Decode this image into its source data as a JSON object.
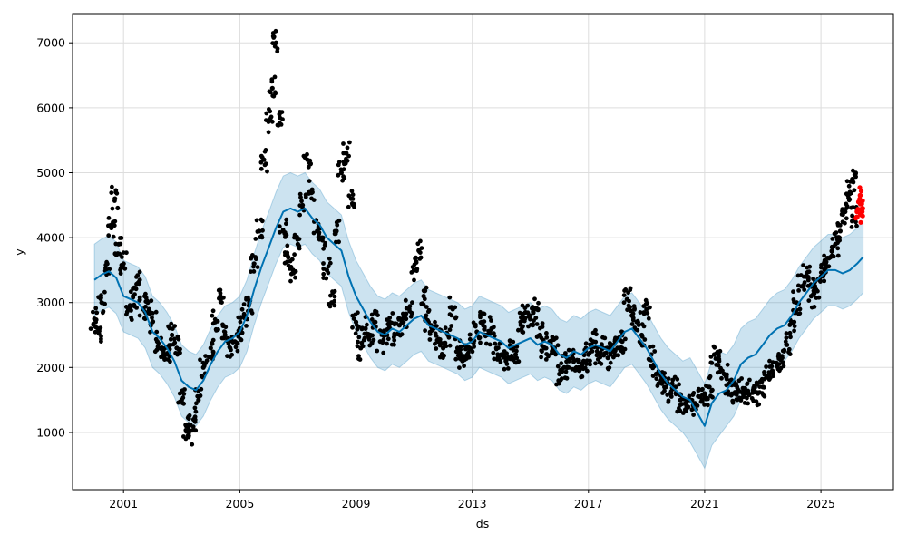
{
  "chart_data": {
    "type": "scatter",
    "xlabel": "ds",
    "ylabel": "y",
    "x_range": [
      "1999-04-01",
      "2027-07-01"
    ],
    "y_range": [
      120,
      7450
    ],
    "x_ticks": [
      {
        "date": "2001-01-01",
        "label": "2001"
      },
      {
        "date": "2005-01-01",
        "label": "2005"
      },
      {
        "date": "2009-01-01",
        "label": "2009"
      },
      {
        "date": "2013-01-01",
        "label": "2013"
      },
      {
        "date": "2017-01-01",
        "label": "2017"
      },
      {
        "date": "2021-01-01",
        "label": "2021"
      },
      {
        "date": "2025-01-01",
        "label": "2025"
      }
    ],
    "y_ticks": [
      1000,
      2000,
      3000,
      4000,
      5000,
      6000,
      7000
    ],
    "grid": true,
    "colors": {
      "observed": "#000000",
      "forecast_line": "#0072b2",
      "uncertainty_band": "#0072b2",
      "recent_actual": "#ff0000"
    },
    "series": [
      {
        "kind": "observed_points",
        "points": [
          [
            "2000-01-01",
            2750
          ],
          [
            "2000-02-15",
            2550
          ],
          [
            "2000-04-01",
            3000
          ],
          [
            "2000-06-01",
            3500
          ],
          [
            "2000-08-01",
            4150
          ],
          [
            "2000-09-15",
            4600
          ],
          [
            "2000-11-01",
            3900
          ],
          [
            "2001-01-01",
            3600
          ],
          [
            "2001-03-01",
            2900
          ],
          [
            "2001-05-01",
            3100
          ],
          [
            "2001-07-01",
            3300
          ],
          [
            "2001-09-01",
            2900
          ],
          [
            "2001-11-01",
            3000
          ],
          [
            "2002-01-01",
            2700
          ],
          [
            "2002-03-01",
            2400
          ],
          [
            "2002-05-01",
            2300
          ],
          [
            "2002-07-01",
            2200
          ],
          [
            "2002-09-01",
            2500
          ],
          [
            "2002-11-01",
            2300
          ],
          [
            "2003-01-01",
            1500
          ],
          [
            "2003-03-01",
            1100
          ],
          [
            "2003-04-01",
            950
          ],
          [
            "2003-06-01",
            1200
          ],
          [
            "2003-08-01",
            1500
          ],
          [
            "2003-10-01",
            2000
          ],
          [
            "2004-01-01",
            2300
          ],
          [
            "2004-03-01",
            2700
          ],
          [
            "2004-05-01",
            3100
          ],
          [
            "2004-07-01",
            2500
          ],
          [
            "2004-09-01",
            2300
          ],
          [
            "2004-11-01",
            2400
          ],
          [
            "2005-01-01",
            2600
          ],
          [
            "2005-03-01",
            2800
          ],
          [
            "2005-05-01",
            3000
          ],
          [
            "2005-07-01",
            3600
          ],
          [
            "2005-09-01",
            4100
          ],
          [
            "2005-11-01",
            5200
          ],
          [
            "2006-01-01",
            5800
          ],
          [
            "2006-02-15",
            6300
          ],
          [
            "2006-04-01",
            7000
          ],
          [
            "2006-05-15",
            5900
          ],
          [
            "2006-07-01",
            4100
          ],
          [
            "2006-09-01",
            3700
          ],
          [
            "2006-11-01",
            3500
          ],
          [
            "2007-01-01",
            3900
          ],
          [
            "2007-03-01",
            4500
          ],
          [
            "2007-05-01",
            5200
          ],
          [
            "2007-07-01",
            4700
          ],
          [
            "2007-09-01",
            4100
          ],
          [
            "2007-11-01",
            4000
          ],
          [
            "2008-01-01",
            3500
          ],
          [
            "2008-03-01",
            3000
          ],
          [
            "2008-05-01",
            4100
          ],
          [
            "2008-07-01",
            5000
          ],
          [
            "2008-09-01",
            5300
          ],
          [
            "2008-11-01",
            4600
          ],
          [
            "2009-01-01",
            2700
          ],
          [
            "2009-03-01",
            2300
          ],
          [
            "2009-05-01",
            2600
          ],
          [
            "2009-07-01",
            2500
          ],
          [
            "2009-09-01",
            2700
          ],
          [
            "2009-11-01",
            2400
          ],
          [
            "2010-01-01",
            2500
          ],
          [
            "2010-03-01",
            2700
          ],
          [
            "2010-05-01",
            2500
          ],
          [
            "2010-07-01",
            2650
          ],
          [
            "2010-09-01",
            2800
          ],
          [
            "2010-11-01",
            2900
          ],
          [
            "2011-01-01",
            3500
          ],
          [
            "2011-03-01",
            3800
          ],
          [
            "2011-05-01",
            3100
          ],
          [
            "2011-07-01",
            2700
          ],
          [
            "2011-09-01",
            2600
          ],
          [
            "2011-11-01",
            2400
          ],
          [
            "2012-01-01",
            2300
          ],
          [
            "2012-03-01",
            2500
          ],
          [
            "2012-05-01",
            2900
          ],
          [
            "2012-07-01",
            2300
          ],
          [
            "2012-09-01",
            2100
          ],
          [
            "2012-11-01",
            2200
          ],
          [
            "2013-01-01",
            2400
          ],
          [
            "2013-03-01",
            2550
          ],
          [
            "2013-05-01",
            2700
          ],
          [
            "2013-07-01",
            2500
          ],
          [
            "2013-09-01",
            2600
          ],
          [
            "2013-11-01",
            2300
          ],
          [
            "2014-01-01",
            2200
          ],
          [
            "2014-03-01",
            2100
          ],
          [
            "2014-05-01",
            2300
          ],
          [
            "2014-07-01",
            2200
          ],
          [
            "2014-09-01",
            2700
          ],
          [
            "2014-11-01",
            2850
          ],
          [
            "2015-01-01",
            2800
          ],
          [
            "2015-03-01",
            2900
          ],
          [
            "2015-05-01",
            2500
          ],
          [
            "2015-07-01",
            2300
          ],
          [
            "2015-09-01",
            2400
          ],
          [
            "2015-11-01",
            2300
          ],
          [
            "2016-01-01",
            1900
          ],
          [
            "2016-03-01",
            2000
          ],
          [
            "2016-05-01",
            2100
          ],
          [
            "2016-07-01",
            2100
          ],
          [
            "2016-09-01",
            2000
          ],
          [
            "2016-11-01",
            2100
          ],
          [
            "2017-01-01",
            2200
          ],
          [
            "2017-03-01",
            2400
          ],
          [
            "2017-05-01",
            2200
          ],
          [
            "2017-07-01",
            2300
          ],
          [
            "2017-09-01",
            2150
          ],
          [
            "2017-11-01",
            2250
          ],
          [
            "2018-01-01",
            2300
          ],
          [
            "2018-03-01",
            2400
          ],
          [
            "2018-05-01",
            3050
          ],
          [
            "2018-07-01",
            2800
          ],
          [
            "2018-09-01",
            2700
          ],
          [
            "2018-11-01",
            2500
          ],
          [
            "2019-01-01",
            2900
          ],
          [
            "2019-03-01",
            2200
          ],
          [
            "2019-05-01",
            1900
          ],
          [
            "2019-07-01",
            1800
          ],
          [
            "2019-09-01",
            1700
          ],
          [
            "2019-11-01",
            1600
          ],
          [
            "2020-01-01",
            1700
          ],
          [
            "2020-03-01",
            1500
          ],
          [
            "2020-05-01",
            1350
          ],
          [
            "2020-07-01",
            1500
          ],
          [
            "2020-09-01",
            1450
          ],
          [
            "2020-11-01",
            1550
          ],
          [
            "2021-01-01",
            1600
          ],
          [
            "2021-03-01",
            1700
          ],
          [
            "2021-05-01",
            2200
          ],
          [
            "2021-07-01",
            2100
          ],
          [
            "2021-09-01",
            1900
          ],
          [
            "2021-11-01",
            1750
          ],
          [
            "2022-01-01",
            1600
          ],
          [
            "2022-03-01",
            1650
          ],
          [
            "2022-05-01",
            1550
          ],
          [
            "2022-07-01",
            1600
          ],
          [
            "2022-09-01",
            1650
          ],
          [
            "2022-11-01",
            1600
          ],
          [
            "2023-01-01",
            1700
          ],
          [
            "2023-03-01",
            1850
          ],
          [
            "2023-05-01",
            1950
          ],
          [
            "2023-07-01",
            2050
          ],
          [
            "2023-09-01",
            2150
          ],
          [
            "2023-11-01",
            2350
          ],
          [
            "2024-01-01",
            2700
          ],
          [
            "2024-03-01",
            3000
          ],
          [
            "2024-05-01",
            3250
          ],
          [
            "2024-07-01",
            3400
          ],
          [
            "2024-09-01",
            3100
          ],
          [
            "2024-11-01",
            3200
          ],
          [
            "2025-01-01",
            3400
          ],
          [
            "2025-03-01",
            3600
          ],
          [
            "2025-05-01",
            3700
          ],
          [
            "2025-07-01",
            3900
          ],
          [
            "2025-09-01",
            4100
          ],
          [
            "2025-11-01",
            4400
          ],
          [
            "2026-01-01",
            4700
          ],
          [
            "2026-02-01",
            4900
          ],
          [
            "2026-03-01",
            4300
          ]
        ]
      },
      {
        "kind": "recent_actual_points",
        "points": [
          [
            "2026-04-01",
            4400
          ],
          [
            "2026-04-20",
            4550
          ],
          [
            "2026-05-10",
            4650
          ],
          [
            "2026-05-25",
            4350
          ],
          [
            "2026-06-10",
            4450
          ]
        ]
      },
      {
        "kind": "forecast_line",
        "points": [
          [
            "2000-01-01",
            3350
          ],
          [
            "2000-04-01",
            3430
          ],
          [
            "2000-07-01",
            3480
          ],
          [
            "2000-10-01",
            3380
          ],
          [
            "2001-01-01",
            3100
          ],
          [
            "2001-04-01",
            3050
          ],
          [
            "2001-07-01",
            3000
          ],
          [
            "2001-10-01",
            2850
          ],
          [
            "2002-01-01",
            2550
          ],
          [
            "2002-04-01",
            2450
          ],
          [
            "2002-07-01",
            2300
          ],
          [
            "2002-10-01",
            2100
          ],
          [
            "2003-01-01",
            1800
          ],
          [
            "2003-04-01",
            1700
          ],
          [
            "2003-07-01",
            1650
          ],
          [
            "2003-10-01",
            1800
          ],
          [
            "2004-01-01",
            2050
          ],
          [
            "2004-04-01",
            2250
          ],
          [
            "2004-07-01",
            2400
          ],
          [
            "2004-10-01",
            2450
          ],
          [
            "2005-01-01",
            2550
          ],
          [
            "2005-04-01",
            2800
          ],
          [
            "2005-07-01",
            3200
          ],
          [
            "2005-10-01",
            3550
          ],
          [
            "2006-01-01",
            3850
          ],
          [
            "2006-04-01",
            4150
          ],
          [
            "2006-07-01",
            4400
          ],
          [
            "2006-10-01",
            4450
          ],
          [
            "2007-01-01",
            4400
          ],
          [
            "2007-04-01",
            4450
          ],
          [
            "2007-07-01",
            4300
          ],
          [
            "2007-10-01",
            4200
          ],
          [
            "2008-01-01",
            4000
          ],
          [
            "2008-04-01",
            3900
          ],
          [
            "2008-07-01",
            3800
          ],
          [
            "2008-10-01",
            3400
          ],
          [
            "2009-01-01",
            3100
          ],
          [
            "2009-04-01",
            2900
          ],
          [
            "2009-07-01",
            2700
          ],
          [
            "2009-10-01",
            2550
          ],
          [
            "2010-01-01",
            2500
          ],
          [
            "2010-04-01",
            2600
          ],
          [
            "2010-07-01",
            2550
          ],
          [
            "2010-10-01",
            2650
          ],
          [
            "2011-01-01",
            2750
          ],
          [
            "2011-04-01",
            2800
          ],
          [
            "2011-07-01",
            2650
          ],
          [
            "2011-10-01",
            2600
          ],
          [
            "2012-01-01",
            2550
          ],
          [
            "2012-04-01",
            2500
          ],
          [
            "2012-07-01",
            2450
          ],
          [
            "2012-10-01",
            2350
          ],
          [
            "2013-01-01",
            2400
          ],
          [
            "2013-04-01",
            2550
          ],
          [
            "2013-07-01",
            2500
          ],
          [
            "2013-10-01",
            2450
          ],
          [
            "2014-01-01",
            2400
          ],
          [
            "2014-04-01",
            2300
          ],
          [
            "2014-07-01",
            2350
          ],
          [
            "2014-10-01",
            2400
          ],
          [
            "2015-01-01",
            2450
          ],
          [
            "2015-04-01",
            2350
          ],
          [
            "2015-07-01",
            2400
          ],
          [
            "2015-10-01",
            2350
          ],
          [
            "2016-01-01",
            2200
          ],
          [
            "2016-04-01",
            2150
          ],
          [
            "2016-07-01",
            2250
          ],
          [
            "2016-10-01",
            2200
          ],
          [
            "2017-01-01",
            2300
          ],
          [
            "2017-04-01",
            2350
          ],
          [
            "2017-07-01",
            2300
          ],
          [
            "2017-10-01",
            2250
          ],
          [
            "2018-01-01",
            2400
          ],
          [
            "2018-04-01",
            2550
          ],
          [
            "2018-07-01",
            2600
          ],
          [
            "2018-10-01",
            2450
          ],
          [
            "2019-01-01",
            2300
          ],
          [
            "2019-04-01",
            2100
          ],
          [
            "2019-07-01",
            1900
          ],
          [
            "2019-10-01",
            1750
          ],
          [
            "2020-01-01",
            1650
          ],
          [
            "2020-04-01",
            1550
          ],
          [
            "2020-07-01",
            1500
          ],
          [
            "2020-10-01",
            1300
          ],
          [
            "2021-01-01",
            1100
          ],
          [
            "2021-04-01",
            1450
          ],
          [
            "2021-07-01",
            1600
          ],
          [
            "2021-10-01",
            1650
          ],
          [
            "2022-01-01",
            1800
          ],
          [
            "2022-04-01",
            2050
          ],
          [
            "2022-07-01",
            2150
          ],
          [
            "2022-10-01",
            2200
          ],
          [
            "2023-01-01",
            2350
          ],
          [
            "2023-04-01",
            2500
          ],
          [
            "2023-07-01",
            2600
          ],
          [
            "2023-10-01",
            2650
          ],
          [
            "2024-01-01",
            2800
          ],
          [
            "2024-04-01",
            3000
          ],
          [
            "2024-07-01",
            3150
          ],
          [
            "2024-10-01",
            3300
          ],
          [
            "2025-01-01",
            3400
          ],
          [
            "2025-04-01",
            3500
          ],
          [
            "2025-07-01",
            3500
          ],
          [
            "2025-10-01",
            3450
          ],
          [
            "2026-01-01",
            3500
          ],
          [
            "2026-04-01",
            3600
          ],
          [
            "2026-06-15",
            3700
          ]
        ]
      }
    ],
    "band_half_width": 550,
    "band_half_width_2021": 650
  }
}
